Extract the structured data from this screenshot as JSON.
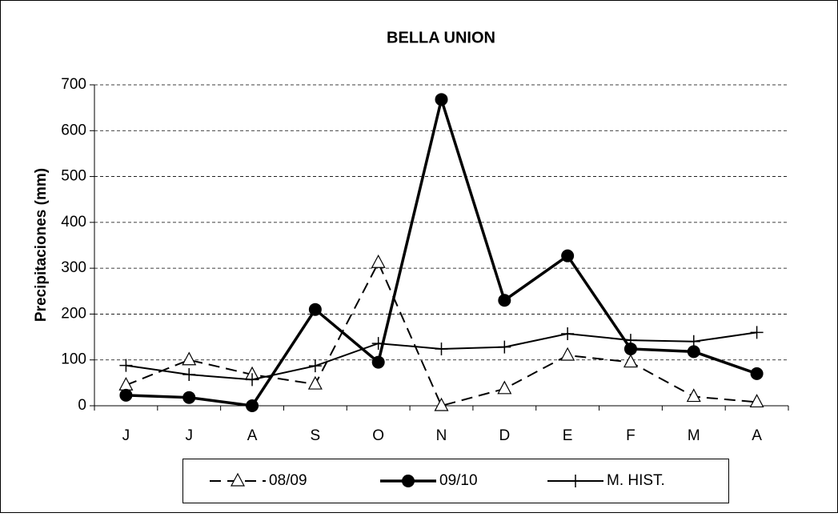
{
  "chart_data": {
    "type": "line",
    "title": "BELLA UNION",
    "y_label": "Precipitaciones (mm)",
    "categories": [
      "J",
      "J",
      "A",
      "S",
      "O",
      "N",
      "D",
      "E",
      "F",
      "M",
      "A"
    ],
    "series": [
      {
        "name": "08/09",
        "color": "#000000",
        "marker": "triangle",
        "dashed": true,
        "values": [
          45,
          100,
          68,
          47,
          312,
          0,
          37,
          110,
          95,
          20,
          8
        ]
      },
      {
        "name": "09/10",
        "color": "#000000",
        "marker": "circle",
        "dashed": false,
        "values": [
          23,
          18,
          0,
          210,
          95,
          668,
          230,
          327,
          124,
          118,
          70
        ]
      },
      {
        "name": "M. HIST.",
        "color": "#000000",
        "marker": "plus",
        "dashed": false,
        "values": [
          88,
          68,
          57,
          87,
          136,
          124,
          128,
          157,
          143,
          140,
          160
        ]
      }
    ],
    "ylim": [
      0,
      700
    ],
    "yticks": [
      0,
      100,
      200,
      300,
      400,
      500,
      600,
      700
    ],
    "grid": true
  }
}
